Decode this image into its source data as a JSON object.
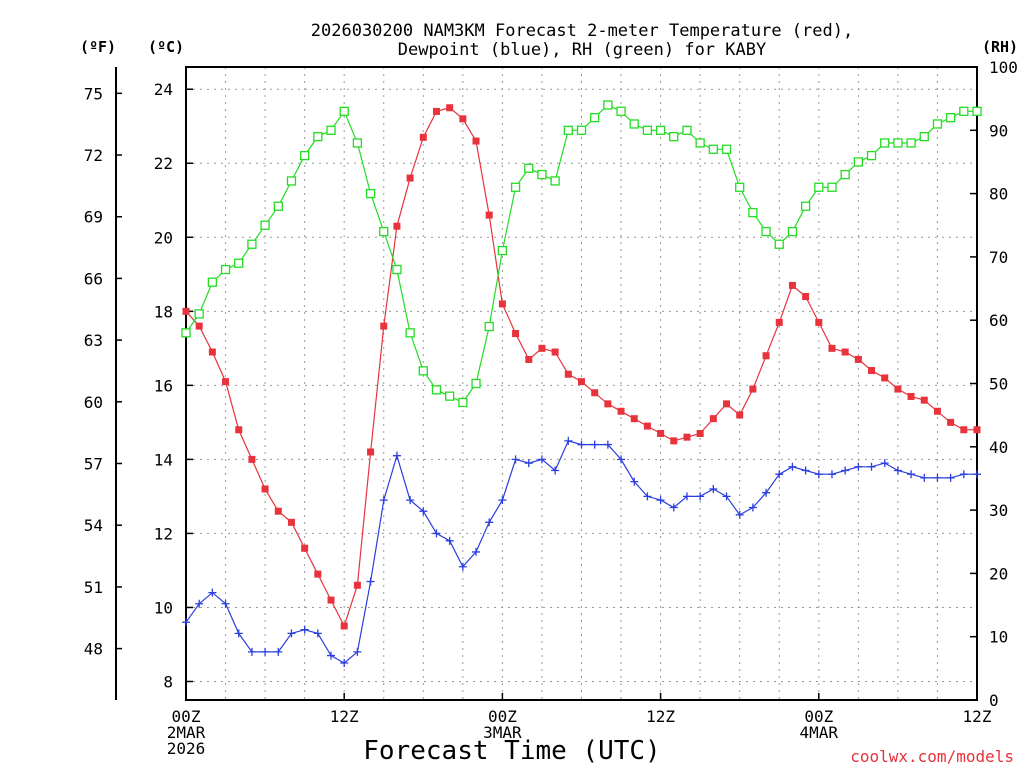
{
  "chart_data": {
    "type": "line",
    "title_lines": [
      "2026030200 NAM3KM Forecast 2-meter Temperature (red),",
      "Dewpoint (blue), RH (green) for KABY"
    ],
    "xlabel": "Forecast Time (UTC)",
    "credit": "coolwx.com/models",
    "units": {
      "fahrenheit": "(ºF)",
      "celsius": "(ºC)",
      "rh": "(RH)"
    },
    "x_range": [
      0,
      60
    ],
    "x_ticks": [
      {
        "h": 0,
        "lines": [
          "00Z",
          "2MAR",
          "2026"
        ]
      },
      {
        "h": 12,
        "lines": [
          "12Z"
        ]
      },
      {
        "h": 24,
        "lines": [
          "00Z",
          "3MAR"
        ]
      },
      {
        "h": 36,
        "lines": [
          "12Z"
        ]
      },
      {
        "h": 48,
        "lines": [
          "00Z",
          "4MAR"
        ]
      },
      {
        "h": 60,
        "lines": [
          "12Z"
        ]
      }
    ],
    "y_left_range_c": [
      7.5,
      24.6
    ],
    "y_left_ticks_c": [
      8,
      10,
      12,
      14,
      16,
      18,
      20,
      22,
      24
    ],
    "y_f_ticks": [
      48,
      51,
      54,
      57,
      60,
      63,
      66,
      69,
      72,
      75
    ],
    "y_right_range": [
      0,
      100
    ],
    "y_right_ticks": [
      0,
      10,
      20,
      30,
      40,
      50,
      60,
      70,
      80,
      90,
      100
    ],
    "series": [
      {
        "name": "2-meter Temperature",
        "axis": "C",
        "color": "#e8323c",
        "marker": "filled-square",
        "values": [
          18.0,
          17.6,
          16.9,
          16.1,
          14.8,
          14.0,
          13.2,
          12.6,
          12.3,
          11.6,
          10.9,
          10.2,
          9.5,
          10.6,
          14.2,
          17.6,
          20.3,
          21.6,
          22.7,
          23.4,
          23.5,
          23.2,
          22.6,
          20.6,
          18.2,
          17.4,
          16.7,
          17.0,
          16.9,
          16.3,
          16.1,
          15.8,
          15.5,
          15.3,
          15.1,
          14.9,
          14.7,
          14.5,
          14.6,
          14.7,
          15.1,
          15.5,
          15.2,
          15.9,
          16.8,
          17.7,
          18.7,
          18.4,
          17.7,
          17.0,
          16.9,
          16.7,
          16.4,
          16.2,
          15.9,
          15.7,
          15.6,
          15.3,
          15.0,
          14.8,
          14.8
        ]
      },
      {
        "name": "Dewpoint",
        "axis": "C",
        "color": "#2b3ee0",
        "marker": "plus",
        "values": [
          9.6,
          10.1,
          10.4,
          10.1,
          9.3,
          8.8,
          8.8,
          8.8,
          9.3,
          9.4,
          9.3,
          8.7,
          8.5,
          8.8,
          10.7,
          12.9,
          14.1,
          12.9,
          12.6,
          12.0,
          11.8,
          11.1,
          11.5,
          12.3,
          12.9,
          14.0,
          13.9,
          14.0,
          13.7,
          14.5,
          14.4,
          14.4,
          14.4,
          14.0,
          13.4,
          13.0,
          12.9,
          12.7,
          13.0,
          13.0,
          13.2,
          13.0,
          12.5,
          12.7,
          13.1,
          13.6,
          13.8,
          13.7,
          13.6,
          13.6,
          13.7,
          13.8,
          13.8,
          13.9,
          13.7,
          13.6,
          13.5,
          13.5,
          13.5,
          13.6,
          13.6
        ]
      },
      {
        "name": "RH",
        "axis": "RH",
        "color": "#22dd22",
        "marker": "open-square",
        "values": [
          58,
          61,
          66,
          68,
          69,
          72,
          75,
          78,
          82,
          86,
          89,
          90,
          93,
          88,
          80,
          74,
          68,
          58,
          52,
          49,
          48,
          47,
          50,
          59,
          71,
          81,
          84,
          83,
          82,
          90,
          90,
          92,
          94,
          93,
          91,
          90,
          90,
          89,
          90,
          88,
          87,
          87,
          81,
          77,
          74,
          72,
          74,
          78,
          81,
          81,
          83,
          85,
          86,
          88,
          88,
          88,
          89,
          91,
          92,
          93,
          93
        ]
      }
    ]
  }
}
